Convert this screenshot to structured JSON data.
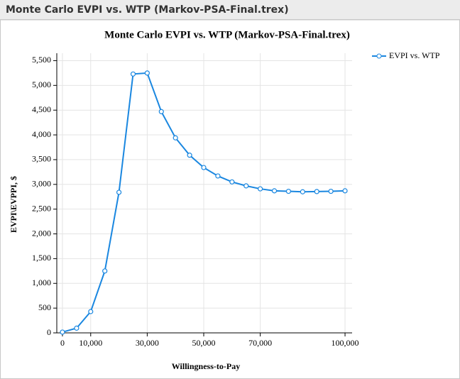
{
  "window_title": "Monte Carlo EVPI vs. WTP (Markov-PSA-Final.trex)",
  "chart_data": {
    "type": "line",
    "title": "Monte Carlo EVPI vs. WTP (Markov-PSA-Final.trex)",
    "x_label": "Willingness-to-Pay",
    "y_label": "EVPI\\EVPPI, $",
    "x": [
      0,
      5000,
      10000,
      15000,
      20000,
      25000,
      30000,
      35000,
      40000,
      45000,
      50000,
      55000,
      60000,
      65000,
      70000,
      75000,
      80000,
      85000,
      90000,
      95000,
      100000
    ],
    "series": [
      {
        "name": "EVPI vs. WTP",
        "color": "#1a87e0",
        "values": [
          15,
          95,
          430,
          1250,
          2840,
          5230,
          5250,
          4470,
          3940,
          3590,
          3340,
          3170,
          3050,
          2970,
          2910,
          2870,
          2860,
          2850,
          2855,
          2860,
          2870
        ]
      }
    ],
    "xlim": [
      -2000,
      102500
    ],
    "ylim": [
      0,
      5650
    ],
    "xticks": [
      0,
      {
        "value": 10000,
        "label": "10,000"
      },
      {
        "value": 30000,
        "label": "30,000"
      },
      {
        "value": 50000,
        "label": "50,000"
      },
      {
        "value": 70000,
        "label": "70,000"
      },
      {
        "value": 100000,
        "label": "100,000"
      }
    ],
    "yticks": [
      0,
      500,
      {
        "value": 1000,
        "label": "1,000"
      },
      {
        "value": 1500,
        "label": "1,500"
      },
      {
        "value": 2000,
        "label": "2,000"
      },
      {
        "value": 2500,
        "label": "2,500"
      },
      {
        "value": 3000,
        "label": "3,000"
      },
      {
        "value": 3500,
        "label": "3,500"
      },
      {
        "value": 4000,
        "label": "4,000"
      },
      {
        "value": 4500,
        "label": "4,500"
      },
      {
        "value": 5000,
        "label": "5,000"
      },
      {
        "value": 5500,
        "label": "5,500"
      }
    ],
    "grid": true,
    "legend": "top-right"
  }
}
